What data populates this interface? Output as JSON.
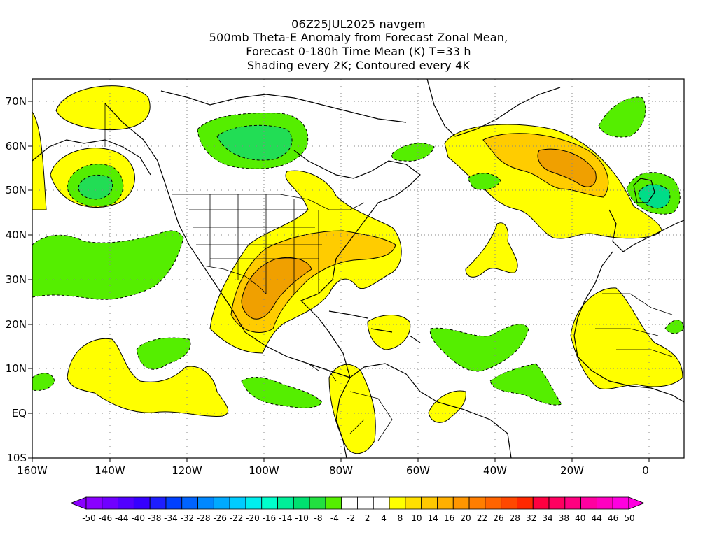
{
  "title": {
    "line1": "06Z25JUL2025 navgem",
    "line2": "500mb Theta-E Anomaly from Forecast Zonal Mean,",
    "line3": "Forecast 0-180h Time Mean (K) T=33 h",
    "line4": "Shading every 2K; Contoured every 4K"
  },
  "map": {
    "lat_labels": [
      "70N",
      "60N",
      "50N",
      "40N",
      "30N",
      "20N",
      "10N",
      "EQ",
      "10S"
    ],
    "lon_labels": [
      "160W",
      "140W",
      "120W",
      "100W",
      "80W",
      "60W",
      "40W",
      "20W",
      "0"
    ]
  },
  "colorbar": {
    "labels": [
      "-50",
      "-46",
      "-44",
      "-40",
      "-38",
      "-34",
      "-32",
      "-28",
      "-26",
      "-22",
      "-20",
      "-16",
      "-14",
      "-10",
      "-8",
      "-4",
      "-2",
      "2",
      "4",
      "8",
      "10",
      "14",
      "16",
      "20",
      "22",
      "26",
      "28",
      "32",
      "34",
      "38",
      "40",
      "44",
      "46",
      "50"
    ],
    "colors": [
      "#8a00ff",
      "#7000ff",
      "#5200ff",
      "#3600ff",
      "#1e1eff",
      "#0040ff",
      "#0064ff",
      "#0088ff",
      "#00aaff",
      "#00ccff",
      "#00eeee",
      "#00ffcc",
      "#00ee99",
      "#00e070",
      "#22e040",
      "#55ee00",
      "#ffffff",
      "#ffffff",
      "#ffffff",
      "#ffff00",
      "#ffe000",
      "#ffc800",
      "#ffb000",
      "#ff9600",
      "#ff7e00",
      "#ff6400",
      "#ff4800",
      "#ff2800",
      "#ff0040",
      "#ff0060",
      "#ff0080",
      "#ff00a0",
      "#ff00c0",
      "#ff00e0"
    ]
  },
  "colors": {
    "warm_light": "#ffff00",
    "warm_mid": "#ffcc00",
    "warm_high": "#f0a000",
    "cool_light": "#55ee00",
    "cool_mid": "#22dd55",
    "cool_high": "#00dd88"
  }
}
